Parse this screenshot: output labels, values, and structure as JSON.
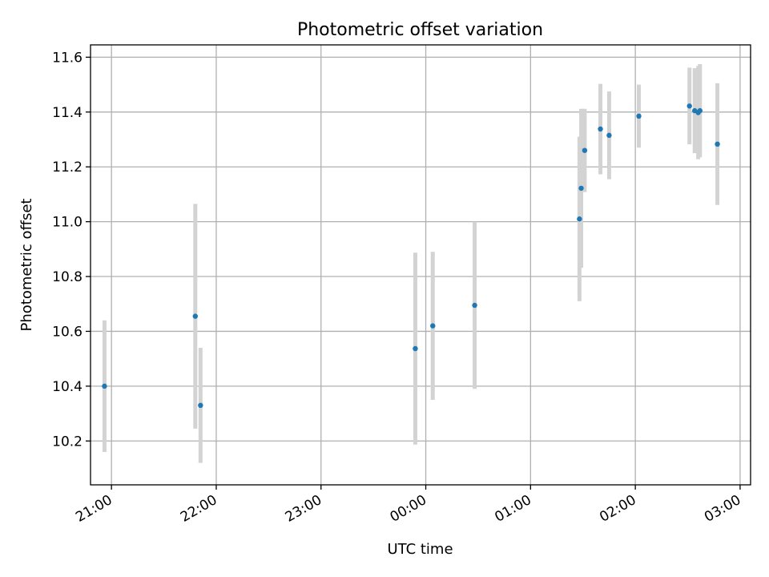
{
  "chart_data": {
    "type": "scatter",
    "title": "Photometric offset variation",
    "xlabel": "UTC time",
    "ylabel": "Photometric offset",
    "x_ticks": [
      "21:00",
      "22:00",
      "23:00",
      "00:00",
      "01:00",
      "02:00",
      "03:00"
    ],
    "y_ticks": [
      "10.2",
      "10.4",
      "10.6",
      "10.8",
      "11.0",
      "11.2",
      "11.4",
      "11.6"
    ],
    "xlim": [
      "20:48",
      "03:06"
    ],
    "ylim": [
      10.04,
      11.645
    ],
    "grid": true,
    "point_color": "#1f77b4",
    "errorbar_color": "#d3d3d3",
    "points": [
      {
        "x": "20:56",
        "y": 10.4,
        "err": 0.24
      },
      {
        "x": "21:48",
        "y": 10.655,
        "err": 0.41
      },
      {
        "x": "21:51",
        "y": 10.33,
        "err": 0.21
      },
      {
        "x": "23:54",
        "y": 10.537,
        "err": 0.35
      },
      {
        "x": "00:04",
        "y": 10.62,
        "err": 0.27
      },
      {
        "x": "00:28",
        "y": 10.695,
        "err": 0.305
      },
      {
        "x": "01:28",
        "y": 11.01,
        "err": 0.3
      },
      {
        "x": "01:29",
        "y": 11.122,
        "err": 0.29
      },
      {
        "x": "01:31",
        "y": 11.26,
        "err": 0.152
      },
      {
        "x": "01:40",
        "y": 11.338,
        "err": 0.165
      },
      {
        "x": "01:45",
        "y": 11.315,
        "err": 0.16
      },
      {
        "x": "02:02",
        "y": 11.385,
        "err": 0.115
      },
      {
        "x": "02:31",
        "y": 11.422,
        "err": 0.14
      },
      {
        "x": "02:34",
        "y": 11.405,
        "err": 0.155
      },
      {
        "x": "02:36",
        "y": 11.398,
        "err": 0.17
      },
      {
        "x": "02:37",
        "y": 11.405,
        "err": 0.17
      },
      {
        "x": "02:47",
        "y": 11.283,
        "err": 0.222
      }
    ]
  }
}
